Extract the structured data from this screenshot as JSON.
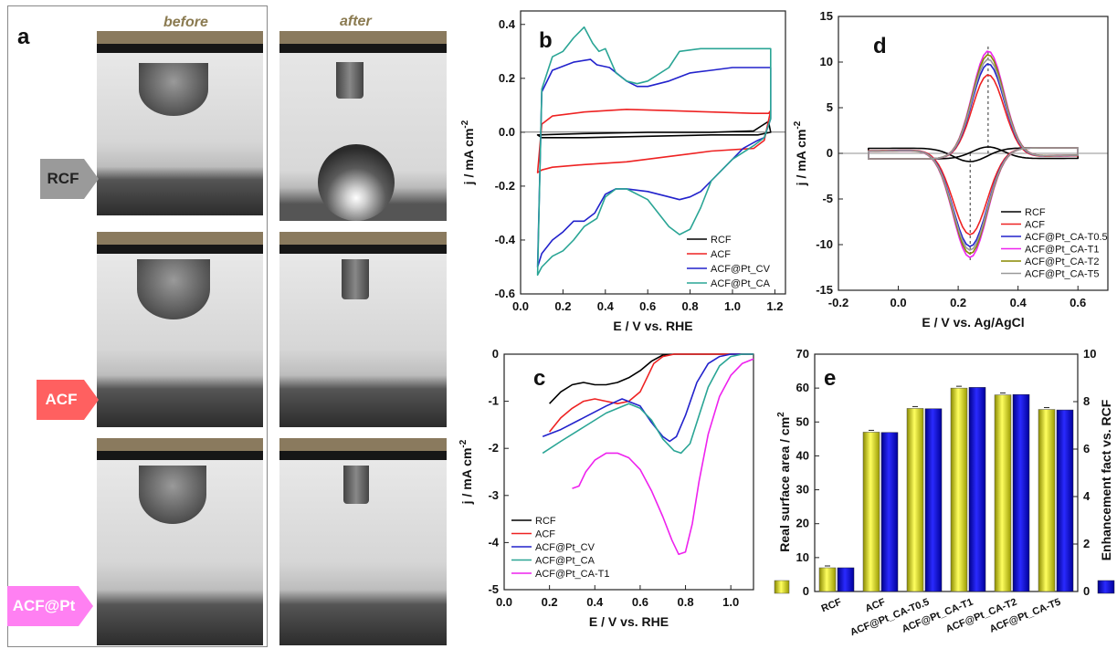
{
  "panel_a": {
    "label": "a",
    "col_before": "before",
    "col_after": "after",
    "rows": [
      {
        "name": "RCF",
        "color": "#9a9a9a"
      },
      {
        "name": "ACF",
        "color": "#ff5a5a"
      },
      {
        "name": "ACF@Pt",
        "color": "#ff6ef0"
      }
    ]
  },
  "chart_data": [
    {
      "id": "b",
      "label": "b",
      "type": "line",
      "xlabel": "E / V vs. RHE",
      "ylabel": "j / mA cm",
      "ylabel_sup": "-2",
      "xlim": [
        0.0,
        1.25
      ],
      "ylim": [
        -0.6,
        0.45
      ],
      "xticks": [
        0.0,
        0.2,
        0.4,
        0.6,
        0.8,
        1.0,
        1.2
      ],
      "xticklabels": [
        "0.0",
        "0.2",
        "0.4",
        "0.6",
        "0.8",
        "1.0",
        "1.2"
      ],
      "yticks": [
        -0.6,
        -0.4,
        -0.2,
        0.0,
        0.2,
        0.4
      ],
      "yticklabels": [
        "-0.6",
        "-0.4",
        "-0.2",
        "0.0",
        "0.2",
        "0.4"
      ],
      "legend": "bottom-right",
      "series": [
        {
          "name": "RCF",
          "color": "#000000",
          "closed": true,
          "x": [
            0.08,
            0.3,
            0.6,
            0.9,
            1.1,
            1.17,
            1.18,
            1.12,
            0.9,
            0.6,
            0.3,
            0.1,
            0.08
          ],
          "y": [
            -0.01,
            -0.005,
            0.0,
            0.0,
            0.005,
            0.04,
            0.0,
            -0.01,
            -0.01,
            -0.015,
            -0.02,
            -0.02,
            -0.01
          ]
        },
        {
          "name": "ACF",
          "color": "#ee2222",
          "closed": true,
          "x": [
            0.08,
            0.1,
            0.15,
            0.3,
            0.5,
            0.7,
            0.9,
            1.1,
            1.17,
            1.18,
            1.15,
            1.1,
            0.9,
            0.7,
            0.5,
            0.3,
            0.15,
            0.1,
            0.08
          ],
          "y": [
            -0.15,
            0.03,
            0.06,
            0.075,
            0.085,
            0.08,
            0.075,
            0.07,
            0.07,
            0.08,
            -0.03,
            -0.06,
            -0.07,
            -0.09,
            -0.11,
            -0.12,
            -0.13,
            -0.14,
            -0.15
          ],
          "order": "x-y"
        },
        {
          "name": "ACF@Pt_CV",
          "color": "#2222cc",
          "closed": true,
          "x": [
            0.08,
            0.1,
            0.15,
            0.25,
            0.33,
            0.36,
            0.42,
            0.5,
            0.55,
            0.6,
            0.7,
            0.8,
            0.9,
            1.0,
            1.1,
            1.18,
            1.18,
            1.15,
            1.12,
            1.05,
            1.0,
            0.9,
            0.85,
            0.8,
            0.75,
            0.7,
            0.6,
            0.5,
            0.45,
            0.4,
            0.35,
            0.3,
            0.25,
            0.2,
            0.15,
            0.1,
            0.08
          ],
          "y": [
            -0.5,
            0.15,
            0.23,
            0.26,
            0.27,
            0.25,
            0.24,
            0.19,
            0.17,
            0.17,
            0.19,
            0.22,
            0.23,
            0.24,
            0.24,
            0.24,
            0.05,
            -0.02,
            -0.03,
            -0.06,
            -0.1,
            -0.18,
            -0.22,
            -0.24,
            -0.25,
            -0.24,
            -0.22,
            -0.21,
            -0.21,
            -0.23,
            -0.3,
            -0.33,
            -0.33,
            -0.37,
            -0.4,
            -0.45,
            -0.5
          ]
        },
        {
          "name": "ACF@Pt_CA",
          "color": "#2aa595",
          "closed": true,
          "x": [
            0.08,
            0.1,
            0.15,
            0.2,
            0.25,
            0.3,
            0.34,
            0.37,
            0.4,
            0.45,
            0.5,
            0.55,
            0.6,
            0.7,
            0.75,
            0.85,
            0.95,
            1.05,
            1.15,
            1.18,
            1.18,
            1.15,
            1.1,
            1.0,
            0.9,
            0.85,
            0.8,
            0.75,
            0.7,
            0.6,
            0.5,
            0.45,
            0.4,
            0.36,
            0.3,
            0.25,
            0.2,
            0.15,
            0.1,
            0.08
          ],
          "y": [
            -0.53,
            0.16,
            0.28,
            0.3,
            0.35,
            0.39,
            0.33,
            0.3,
            0.31,
            0.22,
            0.19,
            0.18,
            0.19,
            0.24,
            0.3,
            0.31,
            0.31,
            0.31,
            0.31,
            0.31,
            0.05,
            -0.02,
            -0.05,
            -0.1,
            -0.18,
            -0.28,
            -0.36,
            -0.38,
            -0.35,
            -0.25,
            -0.21,
            -0.21,
            -0.24,
            -0.32,
            -0.35,
            -0.4,
            -0.44,
            -0.46,
            -0.5,
            -0.53
          ]
        }
      ]
    },
    {
      "id": "c",
      "label": "c",
      "type": "line",
      "xlabel": "E / V vs. RHE",
      "ylabel": "j / mA cm",
      "ylabel_sup": "-2",
      "xlim": [
        0.0,
        1.1
      ],
      "ylim": [
        -5,
        0
      ],
      "xticks": [
        0.0,
        0.2,
        0.4,
        0.6,
        0.8,
        1.0
      ],
      "xticklabels": [
        "0.0",
        "0.2",
        "0.4",
        "0.6",
        "0.8",
        "1.0"
      ],
      "yticks": [
        -5,
        -4,
        -3,
        -2,
        -1,
        0
      ],
      "yticklabels": [
        "-5",
        "-4",
        "-3",
        "-2",
        "-1",
        "0"
      ],
      "legend": "bottom-left",
      "series": [
        {
          "name": "RCF",
          "color": "#000000",
          "x": [
            0.2,
            0.25,
            0.3,
            0.35,
            0.4,
            0.45,
            0.5,
            0.55,
            0.6,
            0.65,
            0.7,
            0.75,
            0.8,
            0.9,
            1.0,
            1.1
          ],
          "y": [
            -1.05,
            -0.8,
            -0.65,
            -0.6,
            -0.65,
            -0.65,
            -0.6,
            -0.5,
            -0.35,
            -0.15,
            -0.02,
            0.0,
            0.0,
            0.0,
            0.0,
            0.0
          ]
        },
        {
          "name": "ACF",
          "color": "#ee2222",
          "x": [
            0.2,
            0.25,
            0.3,
            0.35,
            0.4,
            0.45,
            0.5,
            0.55,
            0.6,
            0.63,
            0.66,
            0.7,
            0.75,
            0.8,
            0.9,
            1.0,
            1.1
          ],
          "y": [
            -1.65,
            -1.35,
            -1.15,
            -1.0,
            -0.95,
            -1.0,
            -1.05,
            -1.0,
            -0.8,
            -0.5,
            -0.2,
            -0.05,
            0.0,
            0.0,
            0.0,
            0.0,
            0.0
          ]
        },
        {
          "name": "ACF@Pt_CV",
          "color": "#2222cc",
          "x": [
            0.17,
            0.25,
            0.35,
            0.45,
            0.52,
            0.6,
            0.65,
            0.7,
            0.73,
            0.76,
            0.8,
            0.85,
            0.9,
            0.95,
            1.0,
            1.1
          ],
          "y": [
            -1.75,
            -1.6,
            -1.35,
            -1.1,
            -0.95,
            -1.1,
            -1.45,
            -1.75,
            -1.85,
            -1.75,
            -1.3,
            -0.6,
            -0.2,
            -0.05,
            0.0,
            0.0
          ]
        },
        {
          "name": "ACF@Pt_CA",
          "color": "#2aa595",
          "x": [
            0.17,
            0.25,
            0.35,
            0.45,
            0.55,
            0.6,
            0.65,
            0.7,
            0.75,
            0.78,
            0.82,
            0.86,
            0.9,
            0.95,
            1.0,
            1.05,
            1.1
          ],
          "y": [
            -2.1,
            -1.85,
            -1.55,
            -1.25,
            -1.05,
            -1.15,
            -1.4,
            -1.8,
            -2.05,
            -2.1,
            -1.9,
            -1.3,
            -0.7,
            -0.25,
            -0.05,
            0.0,
            0.0
          ]
        },
        {
          "name": "ACF@Pt_CA-T1",
          "color": "#ee22ee",
          "x": [
            0.3,
            0.33,
            0.36,
            0.4,
            0.45,
            0.5,
            0.55,
            0.6,
            0.65,
            0.7,
            0.74,
            0.77,
            0.8,
            0.83,
            0.86,
            0.9,
            0.95,
            1.0,
            1.05,
            1.1
          ],
          "y": [
            -2.85,
            -2.8,
            -2.5,
            -2.25,
            -2.1,
            -2.1,
            -2.2,
            -2.45,
            -2.9,
            -3.45,
            -3.95,
            -4.25,
            -4.2,
            -3.6,
            -2.7,
            -1.7,
            -0.9,
            -0.45,
            -0.2,
            -0.1
          ]
        }
      ]
    },
    {
      "id": "d",
      "label": "d",
      "type": "line",
      "xlabel": "E / V vs. Ag/AgCl",
      "ylabel": "j / mA cm",
      "ylabel_sup": "-2",
      "xlim": [
        -0.2,
        0.7
      ],
      "ylim": [
        -15,
        15
      ],
      "xticks": [
        -0.2,
        0.0,
        0.2,
        0.4,
        0.6
      ],
      "xticklabels": [
        "-0.2",
        "0.0",
        "0.2",
        "0.4",
        "0.6"
      ],
      "yticks": [
        -15,
        -10,
        -5,
        0,
        5,
        10,
        15
      ],
      "yticklabels": [
        "-15",
        "-10",
        "-5",
        "0",
        "5",
        "10",
        "15"
      ],
      "legend": "bottom-right",
      "series": [
        {
          "name": "RCF",
          "color": "#000000",
          "closed": true,
          "peak_ox": 1.3,
          "peak_red": -1.5
        },
        {
          "name": "ACF",
          "color": "#ee2222",
          "closed": true,
          "peak_ox": 9.2,
          "peak_red": -9.5
        },
        {
          "name": "ACF@Pt_CA-T0.5",
          "color": "#2222cc",
          "closed": true,
          "peak_ox": 10.4,
          "peak_red": -10.8
        },
        {
          "name": "ACF@Pt_CA-T1",
          "color": "#ee22ee",
          "closed": true,
          "peak_ox": 11.8,
          "peak_red": -12.0
        },
        {
          "name": "ACF@Pt_CA-T2",
          "color": "#888800",
          "closed": true,
          "peak_ox": 11.4,
          "peak_red": -11.6
        },
        {
          "name": "ACF@Pt_CA-T5",
          "color": "#999999",
          "closed": true,
          "peak_ox": 10.9,
          "peak_red": -11.2
        }
      ],
      "annotations": {
        "dashed_x_ox": 0.3,
        "dashed_x_red": 0.24
      }
    },
    {
      "id": "e",
      "label": "e",
      "type": "bar",
      "ylabel": "Real surface area / cm",
      "ylabel_sup": "2",
      "y2label": "Enhancement fact vs. RCF",
      "ylim": [
        0,
        70
      ],
      "y2lim": [
        0,
        10
      ],
      "yticks": [
        0,
        10,
        20,
        30,
        40,
        50,
        60,
        70
      ],
      "yticklabels": [
        "0",
        "10",
        "20",
        "30",
        "40",
        "50",
        "60",
        "70"
      ],
      "y2ticks": [
        0,
        2,
        4,
        6,
        8,
        10
      ],
      "y2ticklabels": [
        "0",
        "2",
        "4",
        "6",
        "8",
        "10"
      ],
      "categories": [
        "RCF",
        "ACF",
        "ACF@Pt_CA-T0.5",
        "ACF@Pt_CA-T1",
        "ACF@Pt_CA-T2",
        "ACF@Pt_CA-T5"
      ],
      "series": [
        {
          "name": "Real surface area",
          "color": "#e6e600",
          "axis": "left",
          "values": [
            7.0,
            47.0,
            54.0,
            60.0,
            58.0,
            53.7
          ]
        },
        {
          "name": "Enhancement factor",
          "color": "#1a1ae6",
          "axis": "right",
          "values": [
            1.0,
            6.7,
            7.7,
            8.6,
            8.3,
            7.65
          ]
        }
      ]
    }
  ]
}
